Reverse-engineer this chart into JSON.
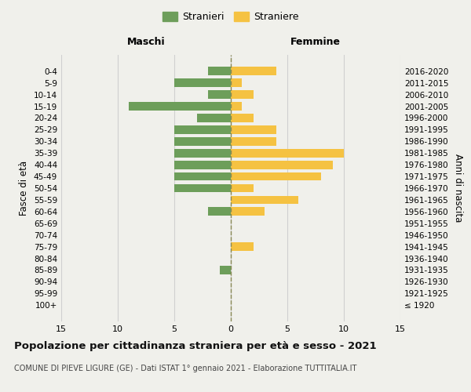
{
  "age_groups": [
    "100+",
    "95-99",
    "90-94",
    "85-89",
    "80-84",
    "75-79",
    "70-74",
    "65-69",
    "60-64",
    "55-59",
    "50-54",
    "45-49",
    "40-44",
    "35-39",
    "30-34",
    "25-29",
    "20-24",
    "15-19",
    "10-14",
    "5-9",
    "0-4"
  ],
  "birth_years": [
    "≤ 1920",
    "1921-1925",
    "1926-1930",
    "1931-1935",
    "1936-1940",
    "1941-1945",
    "1946-1950",
    "1951-1955",
    "1956-1960",
    "1961-1965",
    "1966-1970",
    "1971-1975",
    "1976-1980",
    "1981-1985",
    "1986-1990",
    "1991-1995",
    "1996-2000",
    "2001-2005",
    "2006-2010",
    "2011-2015",
    "2016-2020"
  ],
  "maschi": [
    0,
    0,
    0,
    1,
    0,
    0,
    0,
    0,
    2,
    0,
    5,
    5,
    5,
    5,
    5,
    5,
    3,
    9,
    2,
    5,
    2
  ],
  "femmine": [
    0,
    0,
    0,
    0,
    0,
    2,
    0,
    0,
    3,
    6,
    2,
    8,
    9,
    10,
    4,
    4,
    2,
    1,
    2,
    1,
    4
  ],
  "male_color": "#6d9e5a",
  "female_color": "#f5c242",
  "background_color": "#f0f0eb",
  "grid_color": "#d0d0d0",
  "center_line_color": "#888855",
  "title": "Popolazione per cittadinanza straniera per età e sesso - 2021",
  "subtitle": "COMUNE DI PIEVE LIGURE (GE) - Dati ISTAT 1° gennaio 2021 - Elaborazione TUTTITALIA.IT",
  "ylabel_left": "Fasce di età",
  "ylabel_right": "Anni di nascita",
  "header_maschi": "Maschi",
  "header_femmine": "Femmine",
  "legend_stranieri": "Stranieri",
  "legend_straniere": "Straniere",
  "xlim": 15,
  "xticks": [
    15,
    10,
    5,
    0,
    5,
    10,
    15
  ]
}
